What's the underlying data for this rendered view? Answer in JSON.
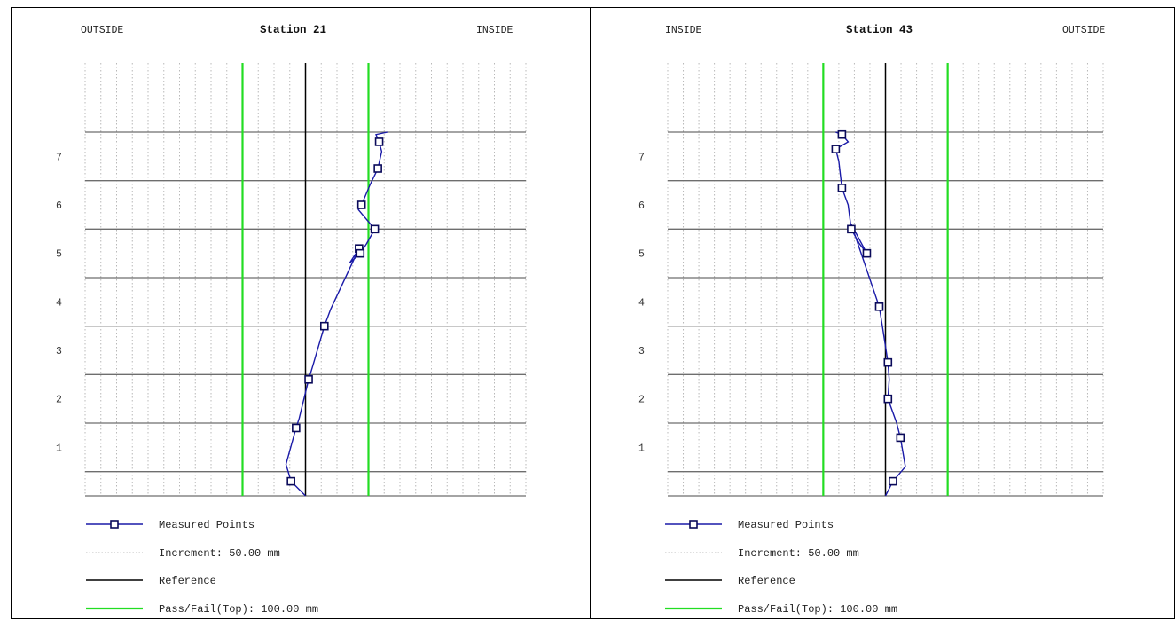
{
  "colors": {
    "measured": "#1a1aa8",
    "increment": "#bdbdbd",
    "reference": "#000000",
    "pass_fail": "#22dd22",
    "major_grid": "#6e6e6e",
    "minor_grid": "#b8b8b8"
  },
  "legend": {
    "measured_label": "Measured Points",
    "increment_label": "Increment: 50.00 mm",
    "reference_label": "Reference",
    "pass_fail_label": "Pass/Fail(Top): 100.00 mm"
  },
  "chart_data": [
    {
      "type": "line",
      "title": "Station 21",
      "left_label": "OUTSIDE",
      "right_label": "INSIDE",
      "x_range": [
        -350,
        350
      ],
      "y_range": [
        0,
        7.5
      ],
      "y_ticks": [
        "1",
        "2",
        "3",
        "4",
        "5",
        "6",
        "7"
      ],
      "reference_x": 0,
      "pass_fail_x": [
        -100,
        100
      ],
      "grid": true,
      "series": [
        {
          "marker": "square",
          "points": [
            [
              0,
              0
            ],
            [
              -23,
              0.3
            ],
            [
              -31,
              0.65
            ],
            [
              -15,
              1.4
            ],
            [
              -10,
              1.6
            ],
            [
              5,
              2.4
            ],
            [
              12,
              2.7
            ],
            [
              30,
              3.5
            ],
            [
              40,
              3.85
            ],
            [
              85,
              5.1
            ],
            [
              70,
              4.8
            ],
            [
              87,
              5.0
            ],
            [
              97,
              5.2
            ],
            [
              110,
              5.5
            ],
            [
              84,
              5.9
            ],
            [
              89,
              6.0
            ],
            [
              102,
              6.4
            ],
            [
              115,
              6.75
            ],
            [
              121,
              7.1
            ],
            [
              117,
              7.3
            ],
            [
              112,
              7.45
            ],
            [
              130,
              7.5
            ]
          ]
        }
      ]
    },
    {
      "type": "line",
      "title": "Station 43",
      "left_label": "INSIDE",
      "right_label": "OUTSIDE",
      "x_range": [
        -350,
        350
      ],
      "y_range": [
        0,
        7.5
      ],
      "y_ticks": [
        "1",
        "2",
        "3",
        "4",
        "5",
        "6",
        "7"
      ],
      "reference_x": 0,
      "pass_fail_x": [
        -100,
        100
      ],
      "grid": true,
      "series": [
        {
          "marker": "square",
          "points": [
            [
              0,
              0
            ],
            [
              12,
              0.3
            ],
            [
              32,
              0.6
            ],
            [
              24,
              1.2
            ],
            [
              18,
              1.5
            ],
            [
              4,
              2.0
            ],
            [
              6,
              2.4
            ],
            [
              4,
              2.75
            ],
            [
              -5,
              3.5
            ],
            [
              -10,
              3.9
            ],
            [
              -55,
              5.6
            ],
            [
              -30,
              5.0
            ],
            [
              -42,
              5.2
            ],
            [
              -55,
              5.5
            ],
            [
              -60,
              6.0
            ],
            [
              -70,
              6.35
            ],
            [
              -75,
              6.9
            ],
            [
              -80,
              7.15
            ],
            [
              -60,
              7.3
            ],
            [
              -70,
              7.45
            ],
            [
              -80,
              7.5
            ]
          ]
        }
      ]
    }
  ]
}
